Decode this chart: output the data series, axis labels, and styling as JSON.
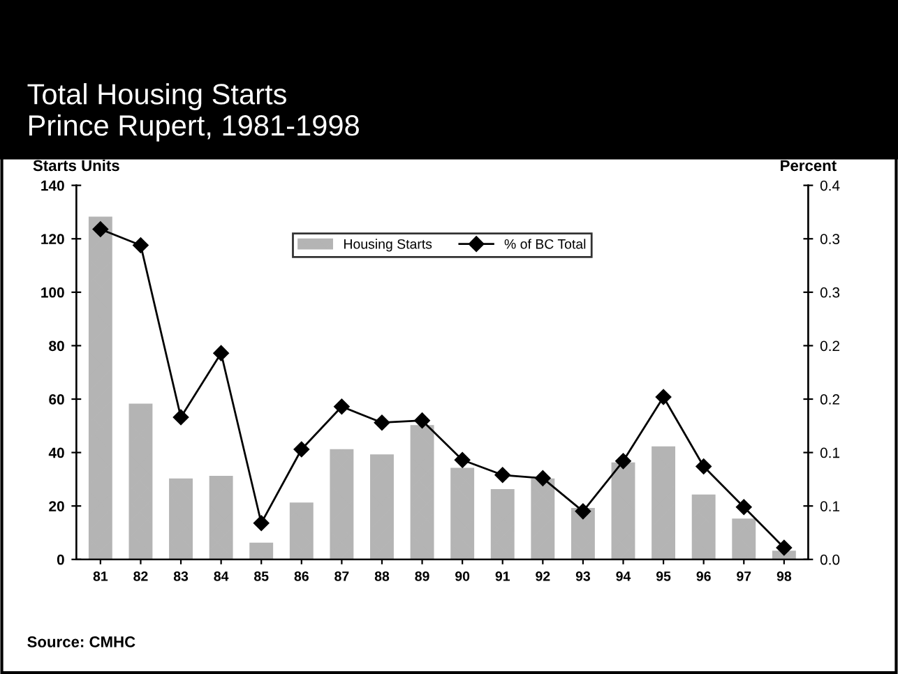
{
  "chart_data": {
    "type": "bar",
    "title": "Total Housing Starts\nPrince Rupert, 1981-1998",
    "ylabel": "Starts Units",
    "y2label": "Percent",
    "categories": [
      "81",
      "82",
      "83",
      "84",
      "85",
      "86",
      "87",
      "88",
      "89",
      "90",
      "91",
      "92",
      "93",
      "94",
      "95",
      "96",
      "97",
      "98"
    ],
    "series": [
      {
        "name": "Housing Starts",
        "color": "#b4b4b4",
        "values": [
          128,
          58,
          30,
          31,
          6,
          21,
          41,
          39,
          50,
          34,
          26,
          30,
          19,
          36,
          42,
          24,
          15,
          3
        ]
      },
      {
        "name": "% of BC Total",
        "type": "line",
        "axis": "y2",
        "color": "#000000",
        "marker": "diamond",
        "values": [
          0.309,
          0.294,
          0.133,
          0.193,
          0.034,
          0.103,
          0.143,
          0.128,
          0.13,
          0.093,
          0.079,
          0.076,
          0.045,
          0.092,
          0.152,
          0.087,
          0.049,
          0.011
        ]
      }
    ],
    "ylim": [
      0,
      140
    ],
    "yticks": [
      0,
      20,
      40,
      60,
      80,
      100,
      120,
      140
    ],
    "y2lim": [
      0,
      0.35
    ],
    "y2ticks": [
      {
        "value": 0,
        "label": "0.0"
      },
      {
        "value": 0.05,
        "label": "0.1"
      },
      {
        "value": 0.1,
        "label": "0.1"
      },
      {
        "value": 0.15,
        "label": "0.2"
      },
      {
        "value": 0.2,
        "label": "0.2"
      },
      {
        "value": 0.25,
        "label": "0.3"
      },
      {
        "value": 0.3,
        "label": "0.3"
      },
      {
        "value": 0.35,
        "label": "0.4"
      }
    ],
    "legend": "top",
    "grid": false,
    "annotations": [
      "Source: CMHC"
    ]
  }
}
